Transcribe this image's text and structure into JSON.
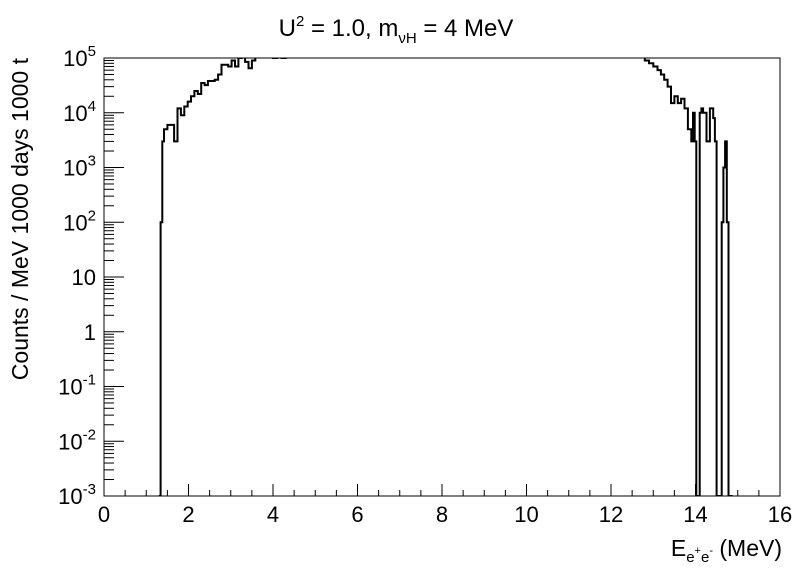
{
  "chart_data": {
    "type": "line",
    "title": {
      "part1": "U",
      "part1_sup": "2",
      "part2": " = 1.0, m",
      "part2_sub": "νH",
      "part3": " = 4 MeV"
    },
    "xlabel": {
      "main": "E",
      "sub": "e",
      "sub_sup1": "+",
      "sub2": "e",
      "sub_sup2": "-",
      "unit": " (MeV)"
    },
    "ylabel": "Counts / MeV 1000 days 1000 t",
    "xlim": [
      0,
      16
    ],
    "ylim": [
      0.001,
      100000
    ],
    "yscale": "log",
    "grid": false,
    "x_ticks": [
      "0",
      "2",
      "4",
      "6",
      "8",
      "10",
      "12",
      "14",
      "16"
    ],
    "y_ticks": [
      {
        "value": 0.001,
        "base": "10",
        "exp": "-3"
      },
      {
        "value": 0.01,
        "base": "10",
        "exp": "-2"
      },
      {
        "value": 0.1,
        "base": "10",
        "exp": "-1"
      },
      {
        "value": 1,
        "base": "1",
        "exp": ""
      },
      {
        "value": 10,
        "base": "10",
        "exp": ""
      },
      {
        "value": 100,
        "base": "10",
        "exp": "2"
      },
      {
        "value": 1000,
        "base": "10",
        "exp": "3"
      },
      {
        "value": 10000,
        "base": "10",
        "exp": "4"
      },
      {
        "value": 100000,
        "base": "10",
        "exp": "5"
      }
    ],
    "series": [
      {
        "color": "#000000",
        "x": [
          1.3,
          1.34,
          1.38,
          1.42,
          1.5,
          1.58,
          1.66,
          1.74,
          1.82,
          1.9,
          1.98,
          2.06,
          2.14,
          2.22,
          2.3,
          2.38,
          2.46,
          2.54,
          2.62,
          2.7,
          2.78,
          2.86,
          2.94,
          3.02,
          3.1,
          3.18,
          3.26,
          3.34,
          3.42,
          3.5,
          3.58,
          3.66,
          3.74,
          3.82,
          3.9,
          4.0,
          4.1,
          4.2,
          4.3,
          12.7,
          12.8,
          12.9,
          13.0,
          13.1,
          13.18,
          13.26,
          13.34,
          13.42,
          13.5,
          13.58,
          13.66,
          13.74,
          13.82,
          13.9,
          13.94,
          13.98,
          14.02,
          14.06,
          14.1,
          14.14,
          14.18,
          14.26,
          14.34,
          14.42,
          14.46,
          14.5,
          14.54,
          14.58,
          14.62,
          14.66,
          14.7,
          14.74,
          14.78,
          14.8,
          14.84,
          14.88
        ],
        "y": [
          0.001,
          100,
          3000,
          5000,
          6000,
          6000,
          3000,
          12000,
          9000,
          13000,
          16000,
          20000,
          25000,
          22000,
          35000,
          32000,
          38000,
          38000,
          40000,
          50000,
          75000,
          75000,
          70000,
          90000,
          70000,
          100000,
          120000,
          85000,
          65000,
          90000,
          120000,
          140000,
          120000,
          120000,
          110000,
          100000,
          110000,
          100000,
          120000,
          120000,
          90000,
          80000,
          70000,
          60000,
          50000,
          40000,
          30000,
          15000,
          20000,
          15000,
          18000,
          12000,
          5000,
          3000,
          10000,
          3000,
          0.001,
          0.001,
          10000,
          12000,
          10000,
          3000,
          12000,
          8000,
          3000,
          0.001,
          0.001,
          0.001,
          100,
          1000,
          3000,
          100,
          0.001,
          0.001,
          0.001,
          0.001
        ]
      }
    ]
  }
}
